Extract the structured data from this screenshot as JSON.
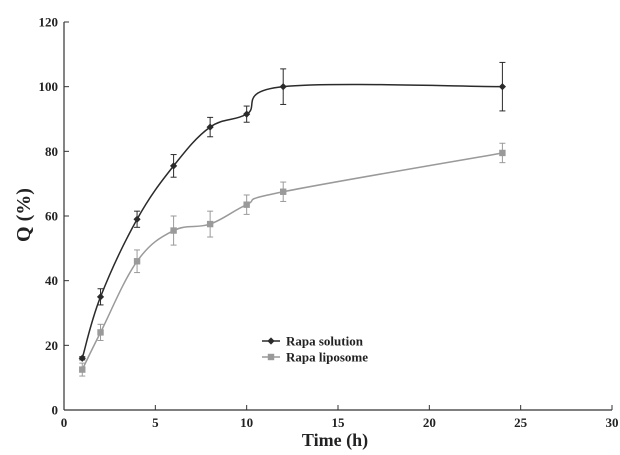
{
  "chart_data": {
    "type": "line",
    "title": "",
    "xlabel": "Time (h)",
    "ylabel": "Q (%)",
    "xlim": [
      0,
      30
    ],
    "ylim": [
      0,
      120
    ],
    "xticks": [
      0,
      5,
      10,
      15,
      20,
      25,
      30
    ],
    "yticks": [
      0,
      20,
      40,
      60,
      80,
      100,
      120
    ],
    "grid": false,
    "legend_position": "lower-middle",
    "series": [
      {
        "name": "Rapa solution",
        "color": "#2b2b2b",
        "marker": "diamond",
        "x": [
          1,
          2,
          4,
          6,
          8,
          10,
          12,
          24
        ],
        "y": [
          16,
          35,
          59,
          75.5,
          87.5,
          91.5,
          100,
          100
        ],
        "error": [
          0.5,
          2.5,
          2.5,
          3.5,
          3.0,
          2.5,
          5.5,
          7.5
        ]
      },
      {
        "name": "Rapa liposome",
        "color": "#9a9a9a",
        "marker": "square",
        "x": [
          1,
          2,
          4,
          6,
          8,
          10,
          12,
          24
        ],
        "y": [
          12.5,
          24,
          46,
          55.5,
          57.5,
          63.5,
          67.5,
          79.5
        ],
        "error": [
          2.0,
          2.5,
          3.5,
          4.5,
          4.0,
          3.0,
          3.0,
          3.0
        ]
      }
    ]
  }
}
